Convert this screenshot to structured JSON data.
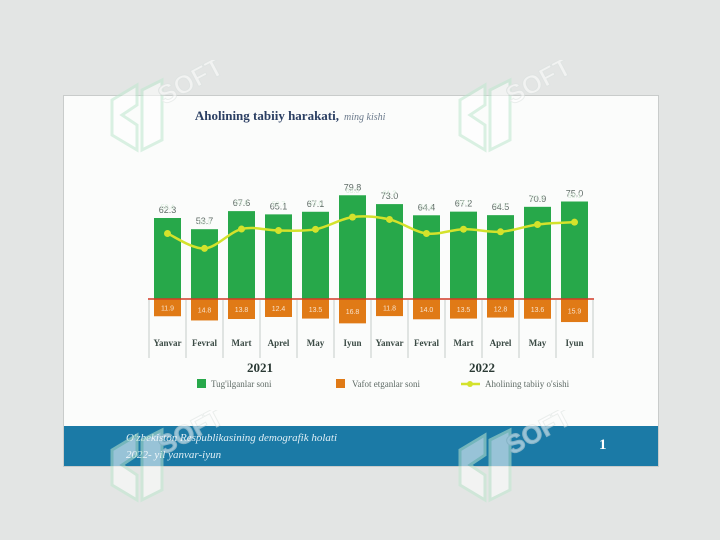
{
  "colors": {
    "births": "#27a84a",
    "deaths": "#e07a16",
    "growth": "#d4e22b",
    "baseline": "#d23a26",
    "footer_bg": "#1b7aa6",
    "title": "#2b3f63"
  },
  "chart_data": {
    "type": "bar",
    "title": "Aholining tabiiy harakati,",
    "subtitle": "ming kishi",
    "categories": [
      "Yanvar",
      "Fevral",
      "Mart",
      "Aprel",
      "May",
      "Iyun",
      "Yanvar",
      "Fevral",
      "Mart",
      "Aprel",
      "May",
      "Iyun"
    ],
    "year_groups": [
      {
        "label": "2021",
        "count": 6
      },
      {
        "label": "2022",
        "count": 6
      }
    ],
    "series": [
      {
        "name": "Tug'ilganlar soni",
        "type": "bar",
        "values": [
          62.3,
          53.7,
          67.6,
          65.1,
          67.1,
          79.8,
          73.0,
          64.4,
          67.2,
          64.5,
          70.9,
          75.0
        ]
      },
      {
        "name": "Vafot etganlar soni",
        "type": "bar",
        "values": [
          11.9,
          14.8,
          13.8,
          12.4,
          13.5,
          16.8,
          11.8,
          14.0,
          13.5,
          12.8,
          13.6,
          15.9
        ]
      },
      {
        "name": "Aholining tabiiy o'sishi",
        "type": "line",
        "values": [
          50.4,
          38.9,
          53.8,
          52.7,
          53.6,
          63.0,
          61.2,
          50.4,
          53.7,
          51.7,
          57.3,
          59.1
        ]
      }
    ]
  },
  "footer": {
    "line1": "O'zbekiston Respublikasining demografik holati",
    "line2": "2022- yil yanvar-iyun",
    "page": "1"
  },
  "watermark": {
    "text": "SOFT"
  }
}
